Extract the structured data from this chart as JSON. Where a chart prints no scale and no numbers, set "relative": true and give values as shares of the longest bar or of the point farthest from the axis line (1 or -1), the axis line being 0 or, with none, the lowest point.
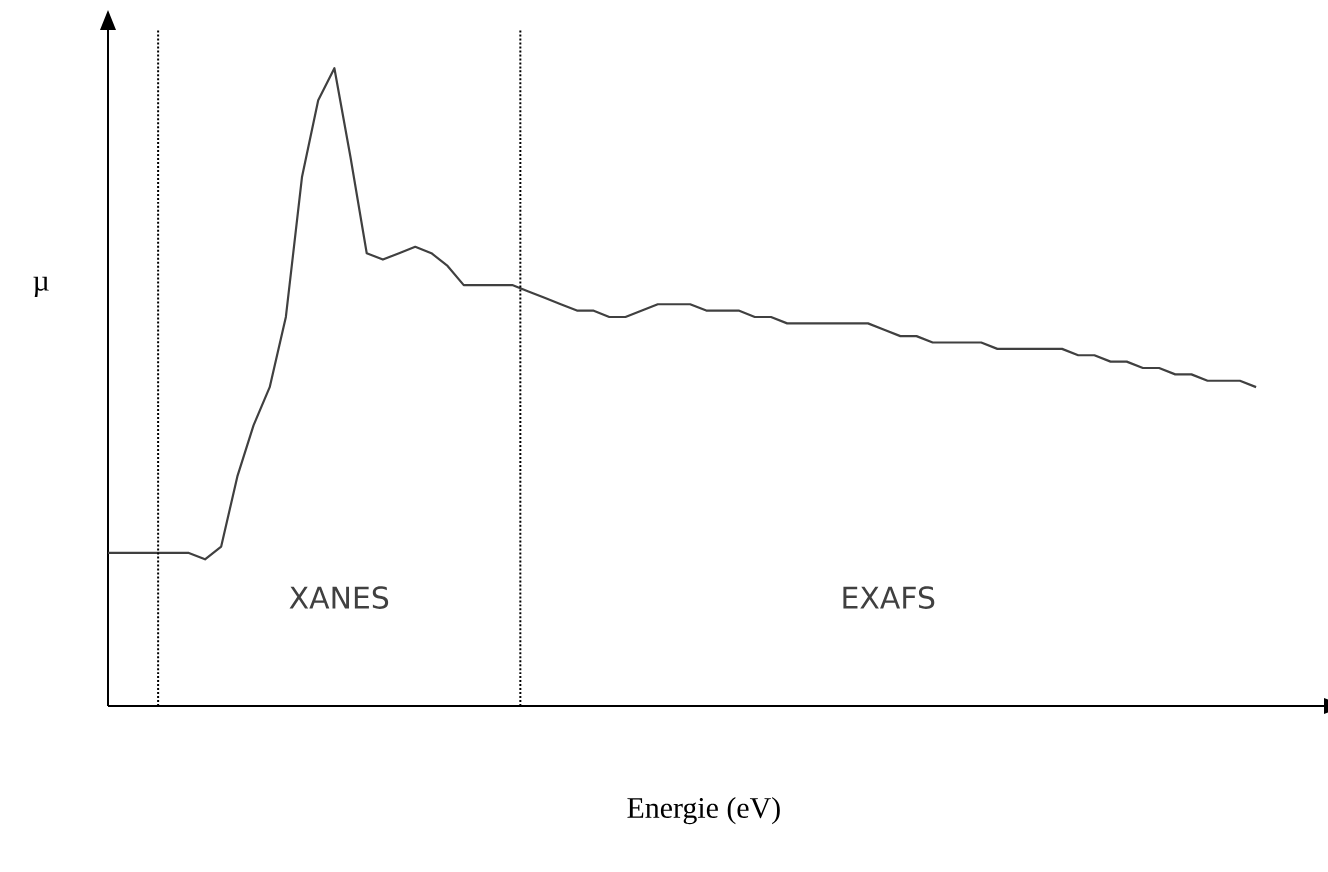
{
  "chart_data": {
    "type": "line",
    "relative": true,
    "xlabel": "Energie (eV)",
    "ylabel": "µ",
    "categories": [
      null,
      null,
      null,
      null,
      null,
      null,
      null,
      null,
      null,
      null,
      null,
      null,
      null,
      null,
      null,
      null,
      null,
      null,
      null,
      null,
      null,
      null,
      null,
      null,
      null,
      null,
      null,
      null,
      null,
      null,
      null,
      null,
      null,
      null,
      null,
      null,
      null,
      null,
      null,
      null,
      null,
      null,
      null,
      null,
      null,
      null,
      null,
      null,
      null,
      null,
      null,
      null,
      null,
      null,
      null,
      null,
      null,
      null,
      null,
      null,
      null,
      null,
      null,
      null,
      null,
      null,
      null,
      null,
      null,
      null,
      null,
      null
    ],
    "series": [
      {
        "color": "#404040",
        "values": [
          0.24,
          0.24,
          0.24,
          0.24,
          0.24,
          0.24,
          0.23,
          0.25,
          0.36,
          0.44,
          0.5,
          0.61,
          0.83,
          0.95,
          1,
          0.86,
          0.71,
          0.7,
          0.71,
          0.72,
          0.71,
          0.69,
          0.66,
          0.66,
          0.66,
          0.66,
          0.65,
          0.64,
          0.63,
          0.62,
          0.62,
          0.61,
          0.61,
          0.62,
          0.63,
          0.63,
          0.63,
          0.62,
          0.62,
          0.62,
          0.61,
          0.61,
          0.6,
          0.6,
          0.6,
          0.6,
          0.6,
          0.6,
          0.59,
          0.58,
          0.58,
          0.57,
          0.57,
          0.57,
          0.57,
          0.56,
          0.56,
          0.56,
          0.56,
          0.56,
          0.55,
          0.55,
          0.54,
          0.54,
          0.53,
          0.53,
          0.52,
          0.52,
          0.51,
          0.51,
          0.51,
          0.5
        ]
      }
    ],
    "annotations": [
      "XANES",
      "EXAFS"
    ],
    "marker": "none",
    "line_style": "solid"
  }
}
